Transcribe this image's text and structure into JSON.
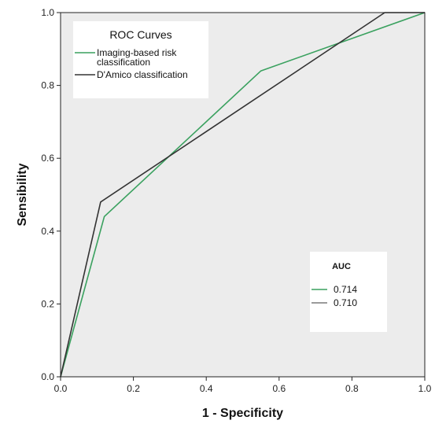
{
  "chart_data": {
    "type": "line",
    "xlabel": "1 - Specificity",
    "ylabel": "Sensibility",
    "xlim": [
      0.0,
      1.0
    ],
    "ylim": [
      0.0,
      1.0
    ],
    "xticks": [
      "0.0",
      "0.2",
      "0.4",
      "0.6",
      "0.8",
      "1.0"
    ],
    "yticks": [
      "0.0",
      "0.2",
      "0.4",
      "0.6",
      "0.8",
      "1.0"
    ],
    "grid": false,
    "background_color": "#ececec",
    "legend": {
      "title": "ROC Curves",
      "placement": "top-left",
      "entries": [
        {
          "lines": [
            "Imaging-based risk",
            "classification"
          ],
          "color": "#3aa15f"
        },
        {
          "lines": [
            "D'Amico classification"
          ],
          "color": "#333333"
        }
      ]
    },
    "auc_box": {
      "title": "AUC",
      "placement": "bottom-right",
      "entries": [
        {
          "value": "0.714",
          "color": "#3aa15f"
        },
        {
          "value": "0.710",
          "color": "#7a7a7a"
        }
      ]
    },
    "series": [
      {
        "name": "Imaging-based risk classification",
        "color": "#3aa15f",
        "x": [
          0.0,
          0.12,
          0.55,
          1.0
        ],
        "y": [
          0.0,
          0.44,
          0.84,
          1.0
        ]
      },
      {
        "name": "D'Amico classification",
        "color": "#333333",
        "x": [
          0.0,
          0.11,
          0.89,
          1.0
        ],
        "y": [
          0.0,
          0.48,
          1.0,
          1.0
        ]
      }
    ]
  }
}
